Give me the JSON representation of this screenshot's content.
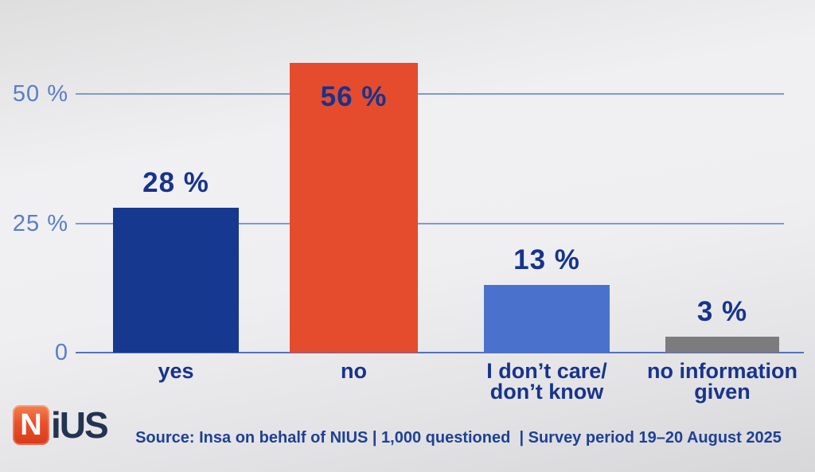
{
  "chart_data": {
    "type": "bar",
    "title": "",
    "xlabel": "",
    "ylabel": "",
    "categories": [
      "yes",
      "no",
      "I don’t care/\ndon’t know",
      "no information\ngiven"
    ],
    "values": [
      28,
      56,
      13,
      3
    ],
    "value_labels": [
      "28 %",
      "56 %",
      "13 %",
      "3 %"
    ],
    "bar_colors": [
      "#16398f",
      "#e54c2d",
      "#4a72cc",
      "#7c7c7e"
    ],
    "yticks": [
      {
        "label": "50 %",
        "value": 50
      },
      {
        "label": "25 %",
        "value": 25
      },
      {
        "label": "0",
        "value": 0
      }
    ],
    "ylim": [
      0,
      60
    ],
    "grid": true,
    "legend": "none",
    "source": "Source: Insa on behalf of NIUS | 1,000 questioned  | Survey period 19–20 August 2025"
  },
  "colors": {
    "gridline": "#7d99d6",
    "baseline": "#5571bd",
    "axis_label": "#5b7cc7",
    "text_navy": "#17338c",
    "source_text": "#1e4095",
    "logo_badge": "#e04a1f"
  },
  "logo": {
    "badge_letter": "N",
    "wordmark_rest": "iUS"
  }
}
